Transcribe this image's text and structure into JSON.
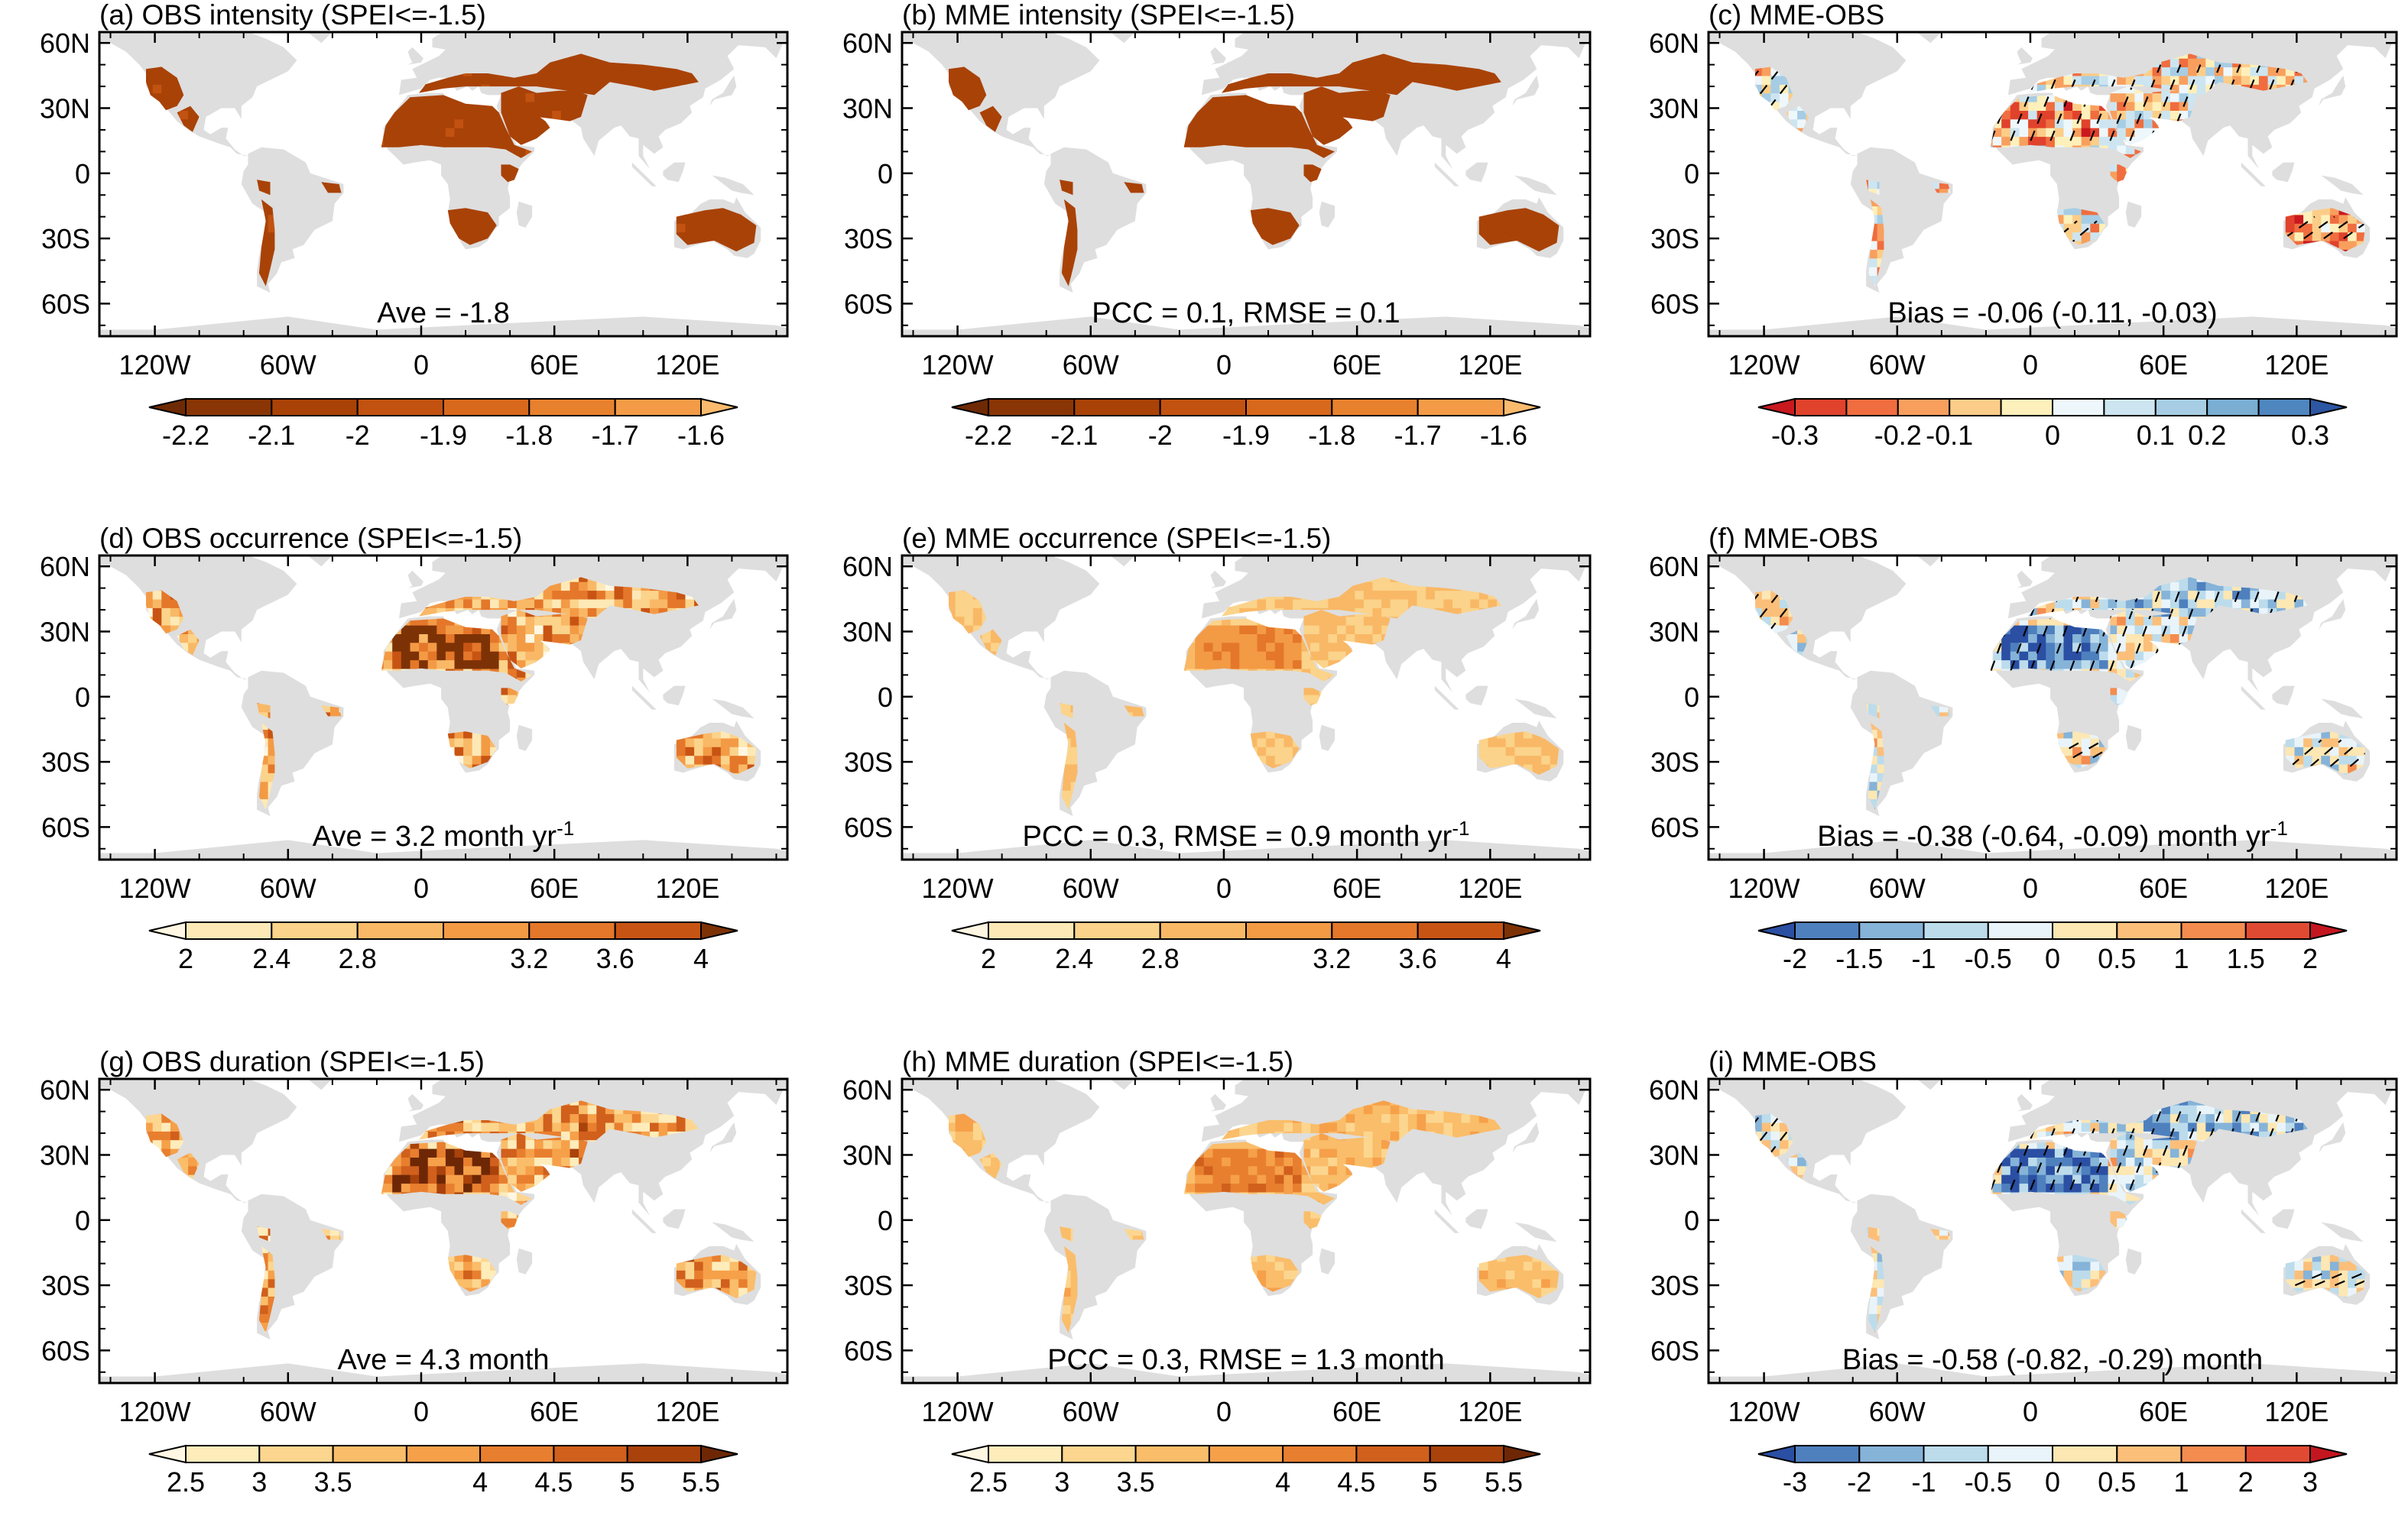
{
  "figure": {
    "panels": [
      {
        "id": "a",
        "title": "(a) OBS intensity (SPEI<=-1.5)",
        "kind": "obs",
        "stat": "Ave = -1.8",
        "stat_sup": "",
        "stat_tail": "",
        "scale": "intensity",
        "colorbar": "intensity"
      },
      {
        "id": "b",
        "title": "(b) MME intensity (SPEI<=-1.5)",
        "kind": "mme",
        "stat": "PCC = 0.1, RMSE = 0.1",
        "stat_sup": "",
        "stat_tail": "",
        "scale": "intensity",
        "colorbar": "intensity"
      },
      {
        "id": "c",
        "title": "(c) MME-OBS",
        "kind": "bias",
        "stat": "Bias = -0.06 (-0.11, -0.03)",
        "stat_sup": "",
        "stat_tail": "",
        "scale": "bias_intensity",
        "colorbar": "bias_intensity"
      },
      {
        "id": "d",
        "title": "(d) OBS occurrence (SPEI<=-1.5)",
        "kind": "obs",
        "stat": "Ave = 3.2 month yr",
        "stat_sup": "-1",
        "stat_tail": "",
        "scale": "occurrence",
        "colorbar": "occurrence"
      },
      {
        "id": "e",
        "title": "(e) MME occurrence (SPEI<=-1.5)",
        "kind": "mme",
        "stat": "PCC = 0.3, RMSE = 0.9 month yr",
        "stat_sup": "-1",
        "stat_tail": "",
        "scale": "occurrence",
        "colorbar": "occurrence"
      },
      {
        "id": "f",
        "title": "(f) MME-OBS",
        "kind": "bias",
        "stat": "Bias = -0.38 (-0.64, -0.09) month yr",
        "stat_sup": "-1",
        "stat_tail": "",
        "scale": "bias_occurrence",
        "colorbar": "bias_occurrence"
      },
      {
        "id": "g",
        "title": "(g) OBS duration (SPEI<=-1.5)",
        "kind": "obs",
        "stat": "Ave = 4.3 month",
        "stat_sup": "",
        "stat_tail": "",
        "scale": "duration",
        "colorbar": "duration"
      },
      {
        "id": "h",
        "title": "(h) MME duration (SPEI<=-1.5)",
        "kind": "mme",
        "stat": "PCC = 0.3, RMSE = 1.3 month",
        "stat_sup": "",
        "stat_tail": "",
        "scale": "duration",
        "colorbar": "duration"
      },
      {
        "id": "i",
        "title": "(i) MME-OBS",
        "kind": "bias",
        "stat": "Bias = -0.58 (-0.82, -0.29) month",
        "stat_sup": "",
        "stat_tail": "",
        "scale": "bias_duration",
        "colorbar": "bias_duration"
      }
    ],
    "lat_ticks": [
      "60N",
      "30N",
      "0",
      "30S",
      "60S"
    ],
    "lat_values": [
      60,
      30,
      0,
      -30,
      -60
    ],
    "lon_ticks": [
      "120W",
      "60W",
      "0",
      "60E",
      "120E"
    ],
    "lon_values": [
      -120,
      -60,
      0,
      60,
      120
    ],
    "lon_range": [
      -145,
      165
    ],
    "lat_range": [
      -75,
      65
    ],
    "colorbars": {
      "intensity": {
        "labels": [
          "-2.2",
          "-2.1",
          "-2",
          "-1.9",
          "-1.8",
          "-1.7",
          "-1.6"
        ],
        "colors": [
          "#6e2a04",
          "#8a3505",
          "#a94207",
          "#c25210",
          "#d8681c",
          "#e8812e",
          "#f39b47",
          "#fbbb6e"
        ]
      },
      "occurrence": {
        "labels": [
          "2",
          "2.4",
          "2.8",
          "3.2",
          "3.6",
          "4"
        ],
        "colors": [
          "#fff7e2",
          "#fde9b6",
          "#fbd38a",
          "#f9b866",
          "#f39a45",
          "#e4772a",
          "#c85414",
          "#7d3206"
        ]
      },
      "duration": {
        "labels": [
          "2.5",
          "3",
          "3.5",
          "4",
          "4.5",
          "5",
          "5.5"
        ],
        "colors": [
          "#fff7e2",
          "#feecbb",
          "#fcd68f",
          "#fabd6a",
          "#f6a04a",
          "#e87f2f",
          "#d0601c",
          "#a9420b",
          "#6e2705"
        ]
      },
      "bias_intensity": {
        "labels": [
          "-0.3",
          "-0.2",
          "-0.1",
          "0",
          "0.1",
          "0.2",
          "0.3"
        ],
        "colors": [
          "#c9191f",
          "#e0422c",
          "#f06d3f",
          "#f89f5e",
          "#fccd88",
          "#fef0ba",
          "#eef7fb",
          "#cde5f0",
          "#a6cde4",
          "#7aaed3",
          "#4e86bf",
          "#2d56a3"
        ]
      },
      "bias_occurrence": {
        "labels": [
          "-2",
          "-1.5",
          "-1",
          "-0.5",
          "0",
          "0.5",
          "1",
          "1.5",
          "2"
        ],
        "colors": [
          "#2a4fa3",
          "#4f80be",
          "#86b3d8",
          "#bcdcec",
          "#e9f4fa",
          "#fde7b3",
          "#fbbf7a",
          "#f48c4f",
          "#e14a32",
          "#c4161f"
        ]
      },
      "bias_duration": {
        "labels": [
          "-3",
          "-2",
          "-1",
          "-0.5",
          "0",
          "0.5",
          "1",
          "2",
          "3"
        ],
        "colors": [
          "#2a4fa3",
          "#4f80be",
          "#86b3d8",
          "#bcdcec",
          "#e9f4fa",
          "#fde7b3",
          "#fbbf7a",
          "#f48c4f",
          "#e14a32",
          "#c4161f"
        ]
      }
    },
    "map_colors": {
      "land": "#dedede",
      "frame": "#000000"
    }
  }
}
